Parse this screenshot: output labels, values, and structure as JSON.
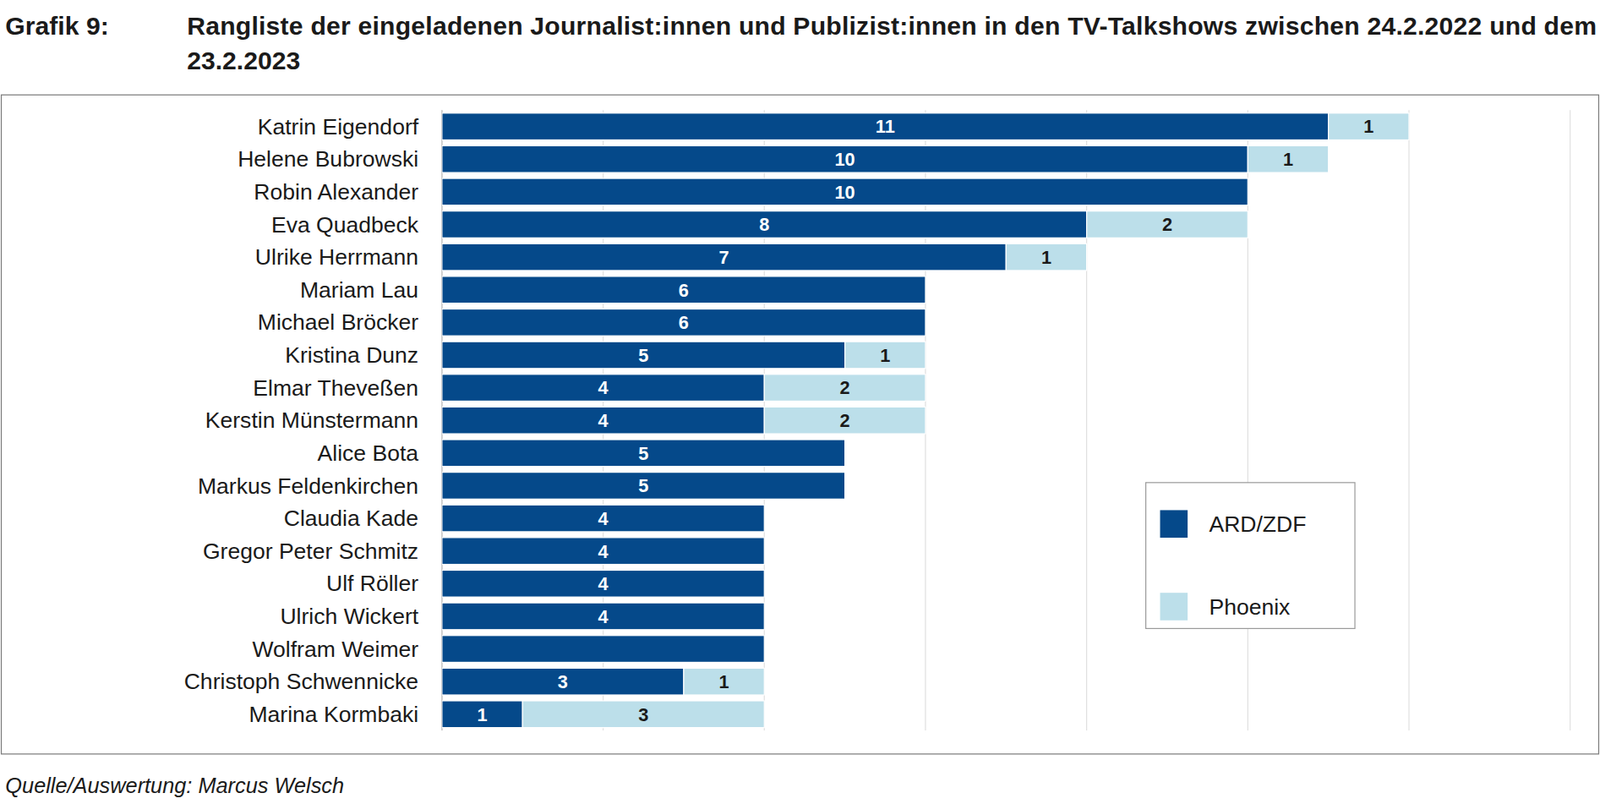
{
  "chart_data": {
    "type": "bar",
    "orientation": "horizontal",
    "stacked": true,
    "figure_label": "Grafik 9:",
    "title": "Rangliste der eingeladenen Journalist:innen und Publizist:innen in den TV-Talkshows zwischen 24.2.2022 und dem 23.2.2023",
    "source": "Quelle/Auswertung: Marcus Welsch",
    "categories": [
      "Katrin Eigendorf",
      "Helene Bubrowski",
      "Robin Alexander",
      "Eva Quadbeck",
      "Ulrike Herrmann",
      "Mariam Lau",
      "Michael Bröcker",
      "Kristina Dunz",
      "Elmar Theveßen",
      "Kerstin Münstermann",
      "Alice Bota",
      "Markus Feldenkirchen",
      "Claudia Kade",
      "Gregor Peter Schmitz",
      "Ulf Röller",
      "Ulrich Wickert",
      "Wolfram Weimer",
      "Christoph Schwennicke",
      "Marina Kormbaki"
    ],
    "series": [
      {
        "name": "ARD/ZDF",
        "color": "#05498a",
        "values": [
          11,
          10,
          10,
          8,
          7,
          6,
          6,
          5,
          4,
          4,
          5,
          5,
          4,
          4,
          4,
          4,
          4,
          3,
          1
        ],
        "value_labels": [
          "11",
          "10",
          "10",
          "8",
          "7",
          "6",
          "6",
          "5",
          "4",
          "4",
          "5",
          "5",
          "4",
          "4",
          "4",
          "4",
          null,
          "3",
          "1"
        ]
      },
      {
        "name": "Phoenix",
        "color": "#bcdfea",
        "values": [
          1,
          1,
          0,
          2,
          1,
          0,
          0,
          1,
          2,
          2,
          0,
          0,
          0,
          0,
          0,
          0,
          0,
          1,
          3
        ],
        "value_labels": [
          "1",
          "1",
          null,
          "2",
          "1",
          null,
          null,
          "1",
          "2",
          "2",
          null,
          null,
          null,
          null,
          null,
          null,
          null,
          "1",
          "3"
        ]
      }
    ],
    "xlim": [
      0,
      14
    ],
    "xticks": [
      0,
      2,
      4,
      6,
      8,
      10,
      12,
      14
    ],
    "tick_labels": false,
    "grid": true,
    "data_labels": true,
    "legend": "right"
  }
}
